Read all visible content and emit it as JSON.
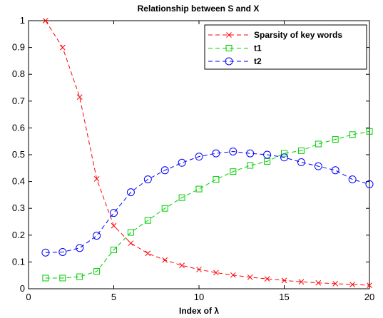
{
  "chart_data": {
    "type": "line",
    "title": "Relationship between S and X",
    "xlabel": "Index of λ",
    "ylabel": "",
    "xlim": [
      0,
      20
    ],
    "ylim": [
      0,
      1
    ],
    "xticks": [
      0,
      5,
      10,
      15,
      20
    ],
    "yticks": [
      0,
      0.1,
      0.2,
      0.3,
      0.4,
      0.5,
      0.6,
      0.7,
      0.8,
      0.9,
      1
    ],
    "grid": false,
    "legend_position": "top-right",
    "x": [
      1,
      2,
      3,
      4,
      5,
      6,
      7,
      8,
      9,
      10,
      11,
      12,
      13,
      14,
      15,
      16,
      17,
      18,
      19,
      20
    ],
    "series": [
      {
        "name": "Sparsity of key words",
        "color": "#ff0000",
        "marker": "x",
        "values": [
          1.0,
          0.9,
          0.715,
          0.41,
          0.235,
          0.17,
          0.132,
          0.107,
          0.087,
          0.072,
          0.06,
          0.051,
          0.043,
          0.037,
          0.031,
          0.026,
          0.022,
          0.019,
          0.016,
          0.013
        ]
      },
      {
        "name": "t1",
        "color": "#00cc00",
        "marker": "square",
        "values": [
          0.04,
          0.04,
          0.045,
          0.065,
          0.145,
          0.21,
          0.255,
          0.3,
          0.34,
          0.372,
          0.408,
          0.437,
          0.46,
          0.475,
          0.505,
          0.515,
          0.54,
          0.557,
          0.575,
          0.587
        ]
      },
      {
        "name": "t2",
        "color": "#0000ff",
        "marker": "circle",
        "values": [
          0.135,
          0.137,
          0.152,
          0.198,
          0.283,
          0.36,
          0.408,
          0.442,
          0.47,
          0.493,
          0.505,
          0.512,
          0.505,
          0.5,
          0.49,
          0.472,
          0.457,
          0.442,
          0.408,
          0.39
        ]
      }
    ]
  }
}
